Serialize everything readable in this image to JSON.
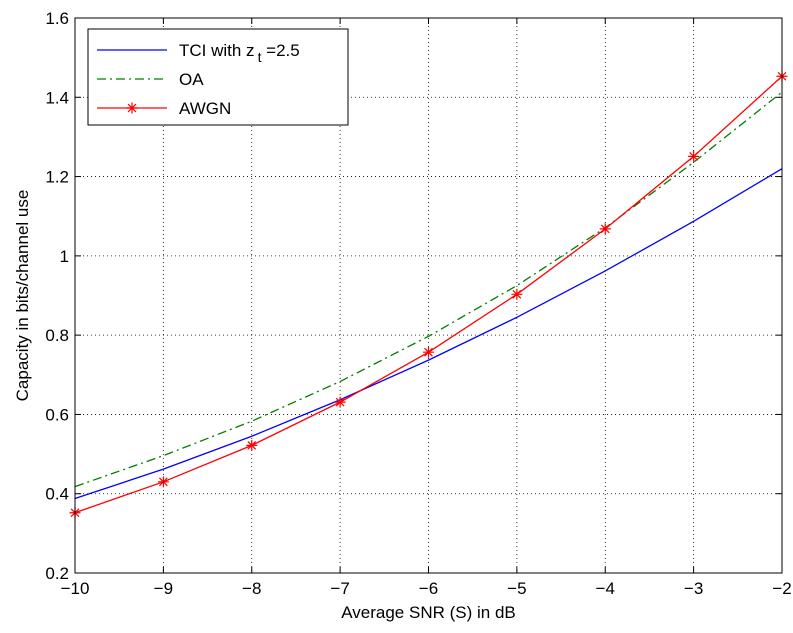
{
  "chart_data": {
    "type": "line",
    "xlabel": "Average SNR (S) in dB",
    "ylabel": "Capacity in bits/channel use",
    "xlim": [
      -10,
      -2
    ],
    "ylim": [
      0.2,
      1.6
    ],
    "x_ticks": [
      -10,
      -9,
      -8,
      -7,
      -6,
      -5,
      -4,
      -3,
      -2
    ],
    "x_tick_labels": [
      "−10",
      "−9",
      "−8",
      "−7",
      "−6",
      "−5",
      "−4",
      "−3",
      "−2"
    ],
    "y_ticks": [
      0.2,
      0.4,
      0.6,
      0.8,
      1.0,
      1.2,
      1.4,
      1.6
    ],
    "y_tick_labels": [
      "0.2",
      "0.4",
      "0.6",
      "0.8",
      "1",
      "1.2",
      "1.4",
      "1.6"
    ],
    "grid": true,
    "legend_position": "top-left",
    "x": [
      -10,
      -9,
      -8,
      -7,
      -6,
      -5,
      -4,
      -3,
      -2
    ],
    "series": [
      {
        "name": "TCI with z_t =2.5",
        "legend_main": "TCI with z",
        "legend_sub": "t",
        "legend_rest": " =2.5",
        "color": "#0000ff",
        "dash": "solid",
        "marker": "none",
        "values": [
          0.388,
          0.462,
          0.545,
          0.637,
          0.737,
          0.845,
          0.962,
          1.087,
          1.22
        ]
      },
      {
        "name": "OA",
        "legend_main": "OA",
        "color": "#007f00",
        "dash": "dashdot",
        "marker": "none",
        "values": [
          0.418,
          0.496,
          0.583,
          0.683,
          0.797,
          0.925,
          1.071,
          1.236,
          1.413
        ]
      },
      {
        "name": "AWGN",
        "legend_main": "AWGN",
        "color": "#ff0000",
        "dash": "solid",
        "marker": "star",
        "values": [
          0.352,
          0.43,
          0.522,
          0.631,
          0.757,
          0.903,
          1.068,
          1.251,
          1.453
        ]
      }
    ]
  }
}
